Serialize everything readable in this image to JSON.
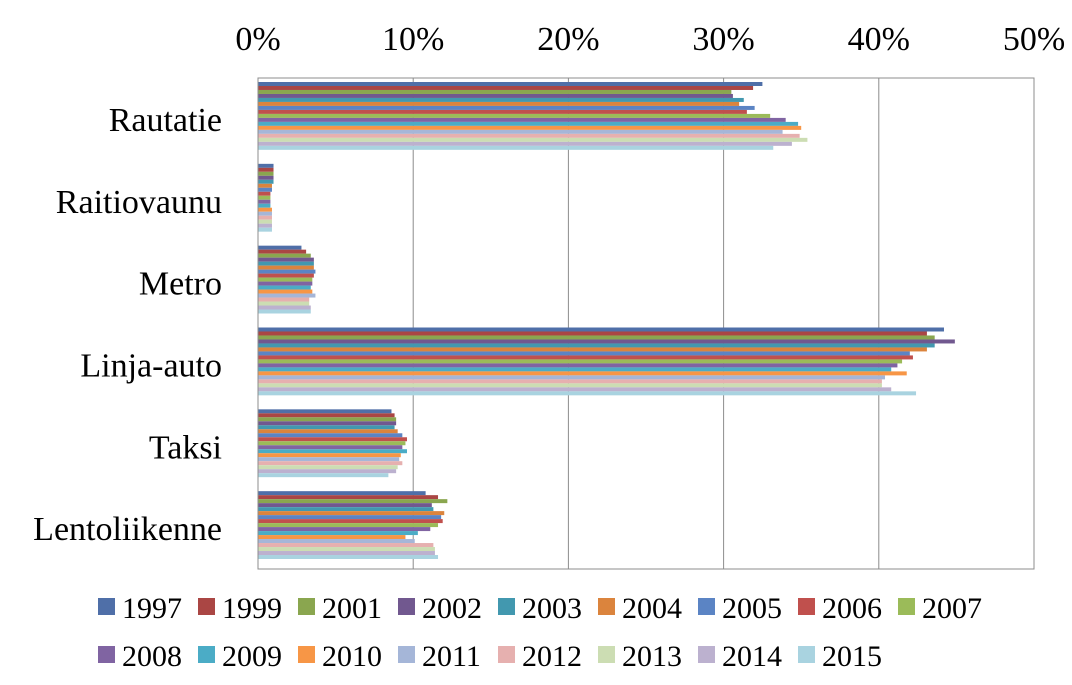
{
  "chart_data": {
    "type": "bar",
    "orientation": "horizontal",
    "categories": [
      "Rautatie",
      "Raitiovaunu",
      "Metro",
      "Linja-auto",
      "Taksi",
      "Lentoliikenne"
    ],
    "xlim": [
      0,
      50
    ],
    "x_ticks": [
      "0%",
      "10%",
      "20%",
      "30%",
      "40%",
      "50%"
    ],
    "x_tick_values": [
      0,
      10,
      20,
      30,
      40,
      50
    ],
    "x_axis_position": "top",
    "grid": true,
    "legend_position": "bottom",
    "series": [
      {
        "name": "1997",
        "color": "#4F6FA8",
        "values": [
          32.5,
          1.0,
          2.8,
          44.2,
          8.6,
          10.8
        ]
      },
      {
        "name": "1999",
        "color": "#AA4644",
        "values": [
          31.9,
          1.0,
          3.1,
          43.1,
          8.8,
          11.6
        ]
      },
      {
        "name": "2001",
        "color": "#8AA64F",
        "values": [
          30.5,
          1.0,
          3.4,
          43.6,
          8.9,
          12.2
        ]
      },
      {
        "name": "2002",
        "color": "#71588F",
        "values": [
          30.6,
          1.0,
          3.6,
          44.9,
          8.9,
          11.2
        ]
      },
      {
        "name": "2003",
        "color": "#4298AF",
        "values": [
          31.3,
          1.0,
          3.6,
          43.6,
          8.8,
          11.3
        ]
      },
      {
        "name": "2004",
        "color": "#DB843D",
        "values": [
          31.0,
          0.9,
          3.6,
          43.1,
          9.0,
          12.0
        ]
      },
      {
        "name": "2005",
        "color": "#5B84C4",
        "values": [
          32.0,
          0.9,
          3.7,
          42.0,
          9.3,
          11.8
        ]
      },
      {
        "name": "2006",
        "color": "#C0504D",
        "values": [
          31.5,
          0.8,
          3.6,
          42.2,
          9.6,
          11.9
        ]
      },
      {
        "name": "2007",
        "color": "#9BBB59",
        "values": [
          33.0,
          0.8,
          3.5,
          41.5,
          9.5,
          11.6
        ]
      },
      {
        "name": "2008",
        "color": "#8064A2",
        "values": [
          34.0,
          0.8,
          3.5,
          41.2,
          9.3,
          11.1
        ]
      },
      {
        "name": "2009",
        "color": "#4BACC6",
        "values": [
          34.8,
          0.8,
          3.4,
          40.8,
          9.6,
          10.3
        ]
      },
      {
        "name": "2010",
        "color": "#F79646",
        "values": [
          35.0,
          0.9,
          3.5,
          41.8,
          9.2,
          9.5
        ]
      },
      {
        "name": "2011",
        "color": "#A5B6D8",
        "values": [
          33.8,
          0.9,
          3.7,
          40.4,
          9.1,
          10.1
        ]
      },
      {
        "name": "2012",
        "color": "#E6B0AF",
        "values": [
          34.9,
          0.9,
          3.3,
          40.2,
          9.3,
          11.3
        ]
      },
      {
        "name": "2013",
        "color": "#CCDDB3",
        "values": [
          35.4,
          0.9,
          3.3,
          40.2,
          9.0,
          11.4
        ]
      },
      {
        "name": "2014",
        "color": "#BCB1CF",
        "values": [
          34.4,
          0.9,
          3.4,
          40.8,
          8.9,
          11.4
        ]
      },
      {
        "name": "2015",
        "color": "#A9D3E0",
        "values": [
          33.2,
          0.9,
          3.4,
          42.4,
          8.4,
          11.6
        ]
      }
    ]
  }
}
